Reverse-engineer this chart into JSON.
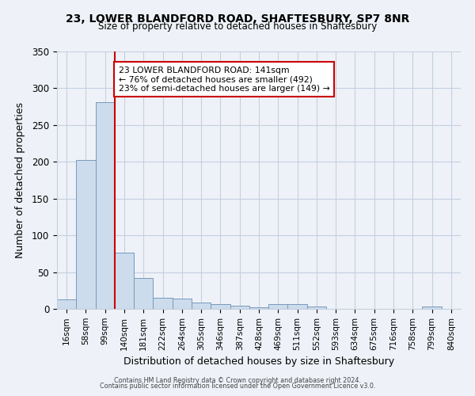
{
  "title1": "23, LOWER BLANDFORD ROAD, SHAFTESBURY, SP7 8NR",
  "title2": "Size of property relative to detached houses in Shaftesbury",
  "xlabel": "Distribution of detached houses by size in Shaftesbury",
  "ylabel": "Number of detached properties",
  "bar_labels": [
    "16sqm",
    "58sqm",
    "99sqm",
    "140sqm",
    "181sqm",
    "222sqm",
    "264sqm",
    "305sqm",
    "346sqm",
    "387sqm",
    "428sqm",
    "469sqm",
    "511sqm",
    "552sqm",
    "593sqm",
    "634sqm",
    "675sqm",
    "716sqm",
    "758sqm",
    "799sqm",
    "840sqm"
  ],
  "bar_values": [
    13,
    202,
    281,
    76,
    42,
    15,
    14,
    9,
    6,
    4,
    2,
    6,
    6,
    3,
    0,
    0,
    0,
    0,
    0,
    3,
    0
  ],
  "bar_color": "#ccdcec",
  "bar_edge_color": "#7799bb",
  "annotation_line1": "23 LOWER BLANDFORD ROAD: 141sqm",
  "annotation_line2": "← 76% of detached houses are smaller (492)",
  "annotation_line3": "23% of semi-detached houses are larger (149) →",
  "marker_color": "#cc0000",
  "ylim": [
    0,
    350
  ],
  "yticks": [
    0,
    50,
    100,
    150,
    200,
    250,
    300,
    350
  ],
  "footnote1": "Contains HM Land Registry data © Crown copyright and database right 2024.",
  "footnote2": "Contains public sector information licensed under the Open Government Licence v3.0.",
  "bg_color": "#eef2f8",
  "grid_color": "#c5cfe0"
}
